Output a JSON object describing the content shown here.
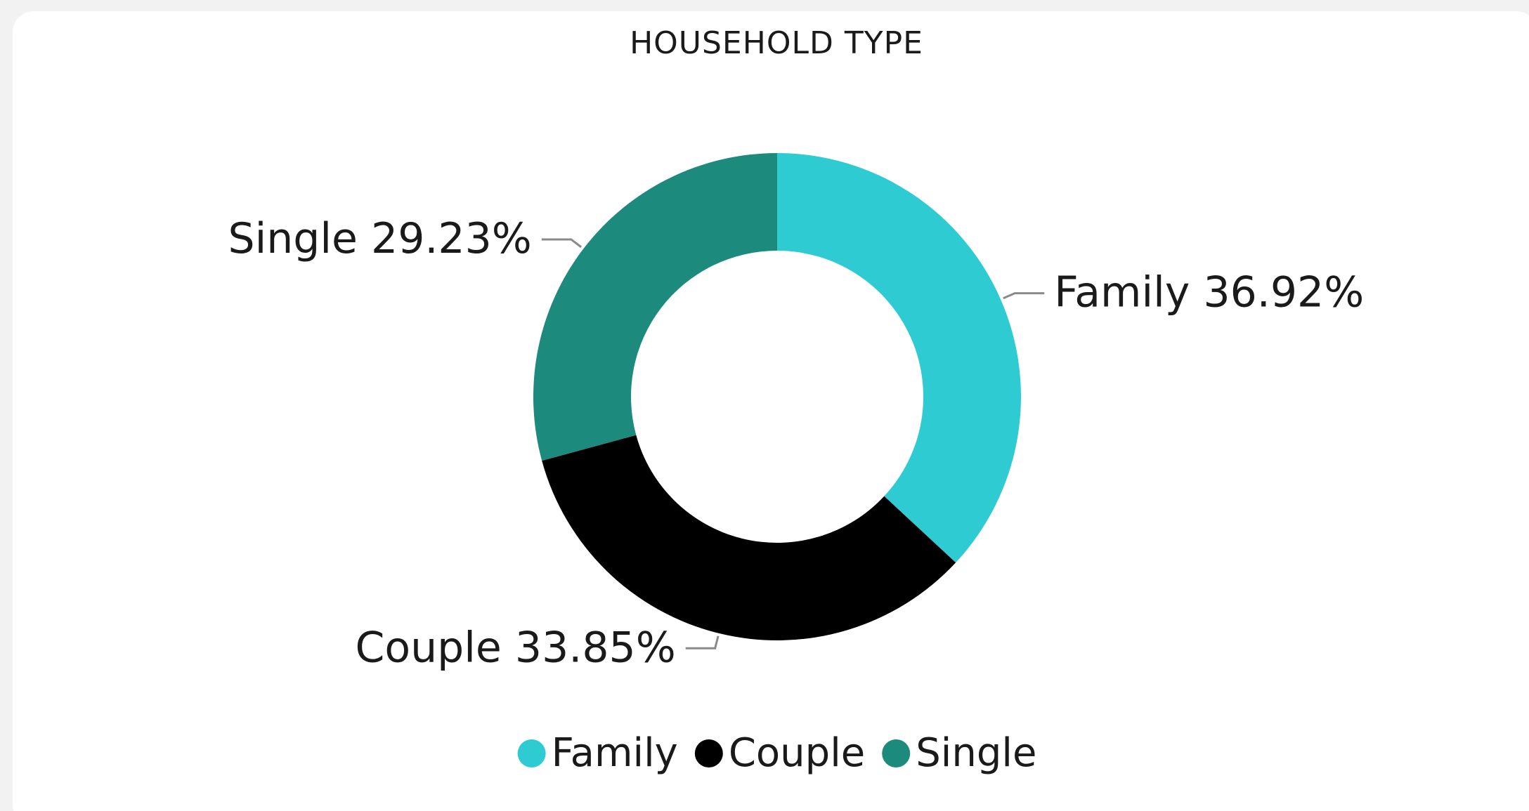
{
  "chart_data": {
    "type": "donut",
    "title": "HOUSEHOLD TYPE",
    "categories": [
      "Family",
      "Couple",
      "Single"
    ],
    "values": [
      36.92,
      33.85,
      29.23
    ],
    "value_labels": [
      "36.92%",
      "33.85%",
      "29.23%"
    ],
    "colors": [
      "#2ecbd3",
      "#000000",
      "#1d8a7e"
    ],
    "legend": "bottom"
  }
}
